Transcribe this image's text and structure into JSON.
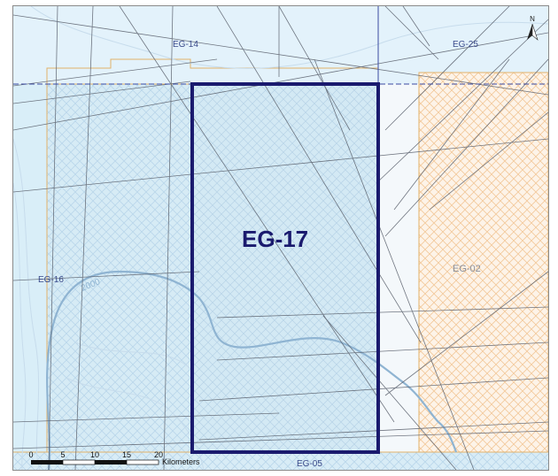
{
  "map": {
    "focus_block": {
      "label": "EG-17",
      "color": "#1a1a6e"
    },
    "blocks": [
      {
        "label": "EG-14"
      },
      {
        "label": "EG-25"
      },
      {
        "label": "EG-16"
      },
      {
        "label": "EG-02"
      },
      {
        "label": "EG-05"
      }
    ],
    "contour_label": "2000",
    "north_arrow": {
      "icon": "north-arrow-icon",
      "label": "N"
    },
    "scale_bar": {
      "ticks": [
        "0",
        "5",
        "10",
        "15",
        "20"
      ],
      "unit": "Kilometers"
    },
    "colors": {
      "water": "#d9eef8",
      "shelf": "#eaf5fc",
      "blue_block_hatch": "#b9d6ea",
      "orange_block_hatch": "#f2c89a",
      "block_outline": "#e2b26a",
      "focus_outline": "#1a1a6e",
      "seismic_line": "#555a66",
      "contour": "#8fb4d2"
    }
  }
}
